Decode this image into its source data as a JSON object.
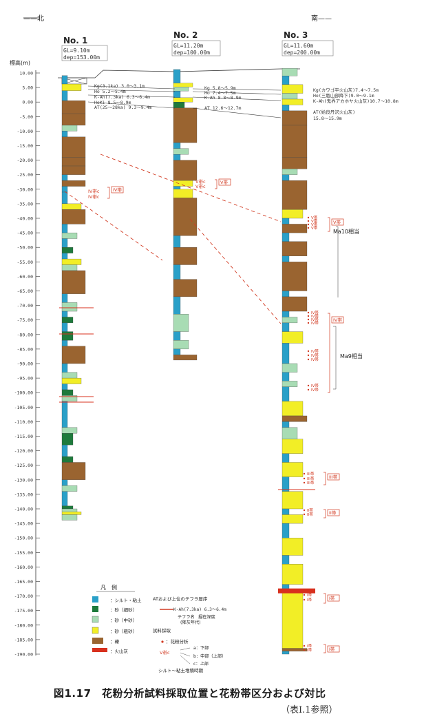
{
  "header": {
    "north": "——北",
    "south": "南——"
  },
  "colors": {
    "clay": "#2aa0c8",
    "fine_sand": "#1e7a3c",
    "medium_sand": "#a8dcb4",
    "coarse_sand": "#f2ee26",
    "gravel": "#9a6430",
    "ash": "#d8301e",
    "marker": "#d23a22"
  },
  "axis": {
    "title": "標高(m)",
    "ticks": [
      "10.00",
      "5.00",
      "0.00",
      "-5.00",
      "-10.00",
      "-15.00",
      "-20.00",
      "-25.00",
      "-30.00",
      "-35.00",
      "-40.00",
      "-45.00",
      "-50.00",
      "-55.00",
      "-60.00",
      "-65.00",
      "-70.00",
      "-75.00",
      "-80.00",
      "-85.00",
      "-90.00",
      "-95.00",
      "-100.00",
      "-105.00",
      "-110.00",
      "-115.00",
      "-120.00",
      "-125.00",
      "-130.00",
      "-135.00",
      "-140.00",
      "-145.00",
      "-150.00",
      "-155.00",
      "-160.00",
      "-165.00",
      "-170.00",
      "-175.00",
      "-180.00",
      "-185.00",
      "-190.00"
    ]
  },
  "boreholes": [
    {
      "name": "No. 1",
      "gl": "GL=9.10m",
      "dep": "dep=153.00m"
    },
    {
      "name": "No. 2",
      "gl": "GL=11.20m",
      "dep": "dep=100.00m"
    },
    {
      "name": "No. 3",
      "gl": "GL=11.60m",
      "dep": "dep=200.00m"
    }
  ],
  "tephra": {
    "no1": [
      "Kg(3.1ka) 3.0〜3.1m",
      "Ho 5.2〜5.4m",
      "K-Ah(7.3ka) 6.3〜6.4m",
      "HoKi 8.5〜8.9m",
      "AT(25〜28ka) 9.3〜9.4m"
    ],
    "no2": [
      "Kg 5.8〜5.9m",
      "Ho 7.4〜7.5m",
      "K-Ah 8.8〜8.9m",
      "AT 12.6〜12.7m"
    ],
    "no3": [
      "Kg(カワゴ平火山灰)7.4〜7.5m",
      "Ho(三瓶山部降下)9.0〜9.1m",
      "K-Ah(鬼界アカホヤ火山灰)10.7〜10.8m",
      "AT(姶良丹沢火山灰)",
      "15.8〜15.9m"
    ]
  },
  "annotations": {
    "no1_zone": "IV帯",
    "no1_samples": "IV帯c",
    "no2_zone": "V帯",
    "no2_samples": "V帯c",
    "no3_zone_v": "V帯",
    "no3_v_samples": "V帯",
    "ma10": "Ma10相当",
    "no3_zone_iv": "IV帯",
    "no3_iv_samples": "IV帯",
    "ma9": "Ma9相当",
    "no3_zone_iii": "III帯",
    "no3_iii_samples": "III帯",
    "no3_zone_ii": "II帯",
    "no3_ii_samples": "II帯",
    "no3_zone_i": "I帯",
    "no3_i_samples": "I帯"
  },
  "legend": {
    "title": "凡　例",
    "items": [
      {
        "label": "：シルト・粘土"
      },
      {
        "label": "：砂（細砂）"
      },
      {
        "label": "：砂（中砂）"
      },
      {
        "label": "：砂（粗砂）"
      },
      {
        "label": "：礫"
      },
      {
        "label": "：火山灰"
      }
    ],
    "tephra_title": "ATおよび上位のテフラ層序",
    "tephra_example": "K-Ah(7.3ka) 6.3〜6.4m",
    "tephra_name": "テフラ名",
    "tephra_depth": "掘在深度",
    "tephra_age": "(降灰年代)",
    "sampling_title": "試料採取",
    "sampling_symbol": "：花粉分析",
    "zone_example": "V帯c",
    "sub_a": "a：下部",
    "sub_b": "b：中部（上部）",
    "sub_c": "c：上部",
    "deposition": "シルト〜粘土堆積時期"
  },
  "caption": "図1.17　花粉分析試料採取位置と花粉帯区分および対比",
  "caption_ref": "（表I.1参照）"
}
